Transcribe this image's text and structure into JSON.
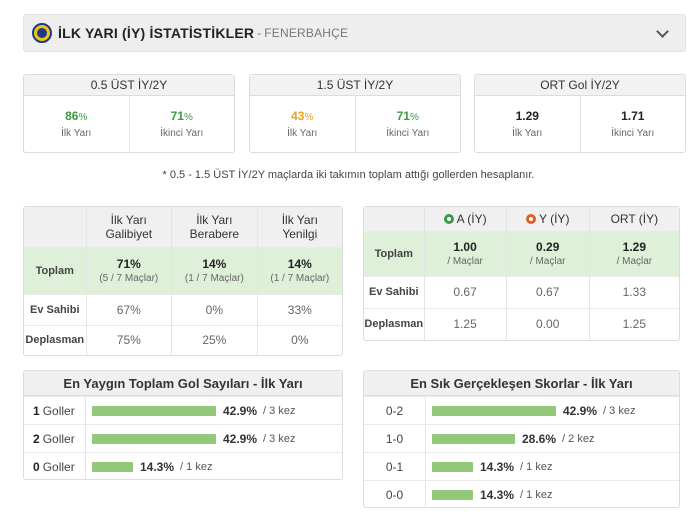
{
  "header": {
    "title": "İLK YARI (İY) İSTATİSTİKLER",
    "separator": "-",
    "team": "FENERBAHÇE"
  },
  "kpis": [
    {
      "title": "0.5 ÜST İY/2Y",
      "a_value": "86",
      "a_unit": "%",
      "a_label": "İlk Yarı",
      "b_value": "71",
      "b_unit": "%",
      "b_label": "İkinci Yarı"
    },
    {
      "title": "1.5 ÜST İY/2Y",
      "a_value": "43",
      "a_unit": "%",
      "a_label": "İlk Yarı",
      "b_value": "71",
      "b_unit": "%",
      "b_label": "İkinci Yarı"
    },
    {
      "title": "ORT Gol İY/2Y",
      "a_value": "1.29",
      "a_unit": "",
      "a_label": "İlk Yarı",
      "b_value": "1.71",
      "b_unit": "",
      "b_label": "İkinci Yarı"
    }
  ],
  "note": "* 0.5 - 1.5 ÜST İY/2Y maçlarda iki takımın toplam attığı gollerden hesaplanır.",
  "results_table": {
    "headers": [
      "İlk Yarı Galibiyet",
      "İlk Yarı Berabere",
      "İlk Yarı Yenilgi"
    ],
    "header_lines": [
      [
        "İlk Yarı",
        "Galibiyet"
      ],
      [
        "İlk Yarı",
        "Berabere"
      ],
      [
        "İlk Yarı",
        "Yenilgi"
      ]
    ],
    "total": {
      "label": "Toplam",
      "cells": [
        {
          "value": "71%",
          "sub": "(5 / 7 Maçlar)"
        },
        {
          "value": "14%",
          "sub": "(1 / 7 Maçlar)"
        },
        {
          "value": "14%",
          "sub": "(1 / 7 Maçlar)"
        }
      ]
    },
    "rows": [
      {
        "label": "Ev Sahibi",
        "cells": [
          "67%",
          "0%",
          "33%"
        ]
      },
      {
        "label": "Deplasman",
        "cells": [
          "75%",
          "25%",
          "0%"
        ]
      }
    ]
  },
  "goals_table": {
    "headers": [
      "A (İY)",
      "Y (İY)",
      "ORT (İY)"
    ],
    "total": {
      "label": "Toplam",
      "cells": [
        {
          "value": "1.00",
          "sub": "/ Maçlar"
        },
        {
          "value": "0.29",
          "sub": "/ Maçlar"
        },
        {
          "value": "1.29",
          "sub": "/ Maçlar"
        }
      ]
    },
    "rows": [
      {
        "label": "Ev Sahibi",
        "cells": [
          "0.67",
          "0.67",
          "1.33"
        ]
      },
      {
        "label": "Deplasman",
        "cells": [
          "1.25",
          "0.00",
          "1.25"
        ]
      }
    ],
    "colors": {
      "scored": "#3b9b43",
      "conceded": "#e05c2a"
    }
  },
  "goal_counts": {
    "title": "En Yaygın Toplam Gol Sayıları - İlk Yarı",
    "rows": [
      {
        "num": "1",
        "word": "Goller",
        "pct": 42.9,
        "pct_label": "42.9%",
        "count": "3 kez"
      },
      {
        "num": "2",
        "word": "Goller",
        "pct": 42.9,
        "pct_label": "42.9%",
        "count": "3 kez"
      },
      {
        "num": "0",
        "word": "Goller",
        "pct": 14.3,
        "pct_label": "14.3%",
        "count": "1 kez"
      }
    ]
  },
  "scores": {
    "title": "En Sık Gerçekleşen Skorlar - İlk Yarı",
    "rows": [
      {
        "score": "0-2",
        "pct": 42.9,
        "pct_label": "42.9%",
        "count": "3 kez"
      },
      {
        "score": "1-0",
        "pct": 28.6,
        "pct_label": "28.6%",
        "count": "2 kez"
      },
      {
        "score": "0-1",
        "pct": 14.3,
        "pct_label": "14.3%",
        "count": "1 kez"
      },
      {
        "score": "0-0",
        "pct": 14.3,
        "pct_label": "14.3%",
        "count": "1 kez"
      }
    ]
  },
  "colors": {
    "bar": "#93c77a",
    "highlight": "#dff0d8",
    "green": "#3b9b43",
    "orange": "#f0a020",
    "red": "#e05c2a"
  }
}
